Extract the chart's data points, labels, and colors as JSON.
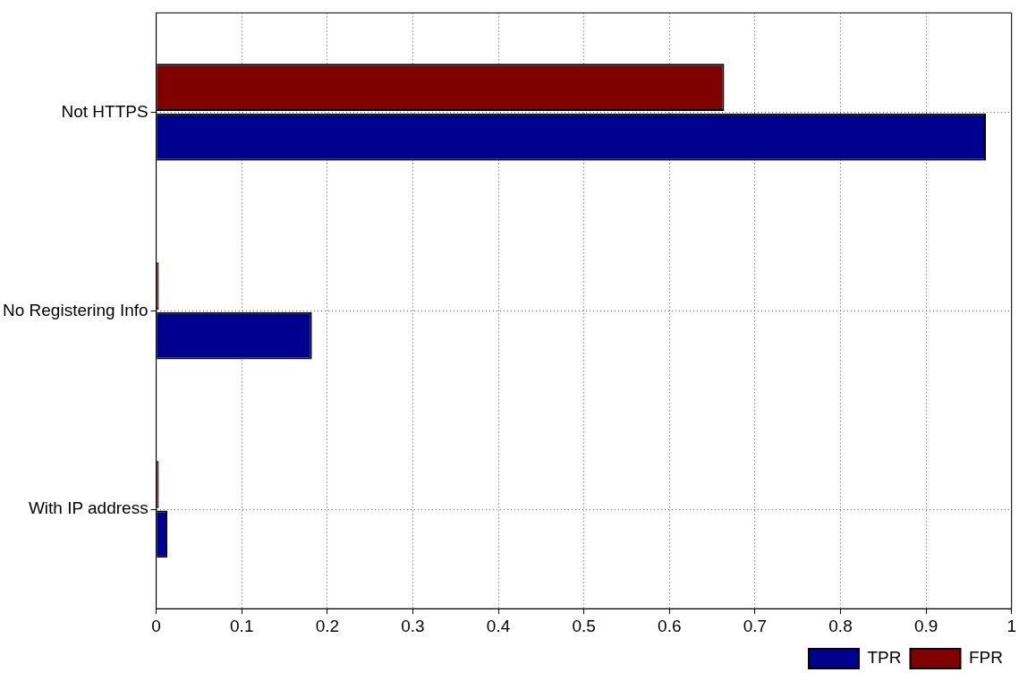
{
  "chart_data": {
    "type": "bar",
    "orientation": "horizontal",
    "categories": [
      "Not HTTPS",
      "No Registering Info",
      "With IP address"
    ],
    "series": [
      {
        "name": "TPR",
        "color": "#00008f",
        "values": [
          0.97,
          0.182,
          0.013
        ]
      },
      {
        "name": "FPR",
        "color": "#800000",
        "values": [
          0.664,
          0.003,
          0.003
        ]
      }
    ],
    "xlim": [
      0,
      1
    ],
    "xticks": [
      0,
      0.1,
      0.2,
      0.3,
      0.4,
      0.5,
      0.6,
      0.7,
      0.8,
      0.9,
      1
    ],
    "grid": true,
    "legend": "bottom right"
  }
}
